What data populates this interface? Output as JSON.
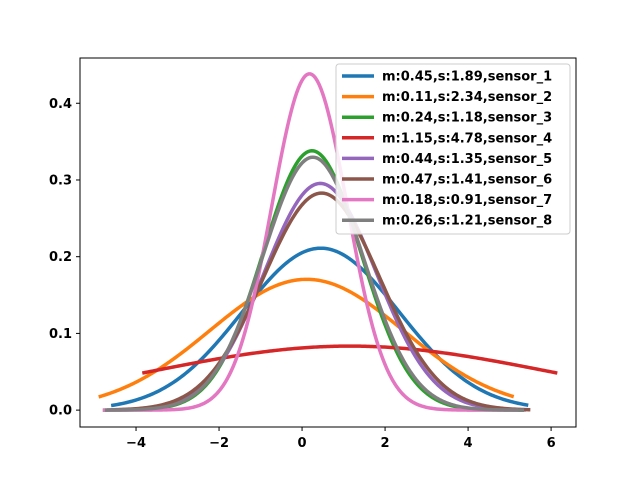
{
  "chart_data": {
    "type": "line",
    "title": "",
    "xlabel": "",
    "ylabel": "",
    "xlim": [
      -5.35,
      6.6
    ],
    "ylim": [
      -0.022,
      0.459
    ],
    "x_ticks": [
      -4,
      -2,
      0,
      2,
      4,
      6
    ],
    "y_ticks": [
      0.0,
      0.1,
      0.2,
      0.3,
      0.4
    ],
    "x_tick_labels": [
      "−4",
      "−2",
      "0",
      "2",
      "4",
      "6"
    ],
    "y_tick_labels": [
      "0.0",
      "0.1",
      "0.2",
      "0.3",
      "0.4"
    ],
    "grid": false,
    "legend_position": "top-right",
    "series": [
      {
        "name": "m:0.45,s:1.89,sensor_1",
        "mean": 0.45,
        "std": 1.89,
        "x_range": [
          -4.6,
          5.45
        ],
        "color": "#1f77b4"
      },
      {
        "name": "m:0.11,s:2.34,sensor_2",
        "mean": 0.11,
        "std": 2.34,
        "x_range": [
          -4.9,
          5.1
        ],
        "color": "#ff7f0e"
      },
      {
        "name": "m:0.24,s:1.18,sensor_3",
        "mean": 0.24,
        "std": 1.18,
        "x_range": [
          -4.8,
          5.35
        ],
        "color": "#2ca02c"
      },
      {
        "name": "m:1.15,s:4.78,sensor_4",
        "mean": 1.15,
        "std": 4.78,
        "x_range": [
          -3.85,
          6.15
        ],
        "color": "#d62728"
      },
      {
        "name": "m:0.44,s:1.35,sensor_5",
        "mean": 0.44,
        "std": 1.35,
        "x_range": [
          -4.7,
          5.4
        ],
        "color": "#9467bd"
      },
      {
        "name": "m:0.47,s:1.41,sensor_6",
        "mean": 0.47,
        "std": 1.41,
        "x_range": [
          -4.6,
          5.5
        ],
        "color": "#8c564b"
      },
      {
        "name": "m:0.18,s:0.91,sensor_7",
        "mean": 0.18,
        "std": 0.91,
        "x_range": [
          -4.8,
          5.2
        ],
        "color": "#e377c2"
      },
      {
        "name": "m:0.26,s:1.21,sensor_8",
        "mean": 0.26,
        "std": 1.21,
        "x_range": [
          -4.75,
          5.35
        ],
        "color": "#7f7f7f"
      }
    ]
  }
}
